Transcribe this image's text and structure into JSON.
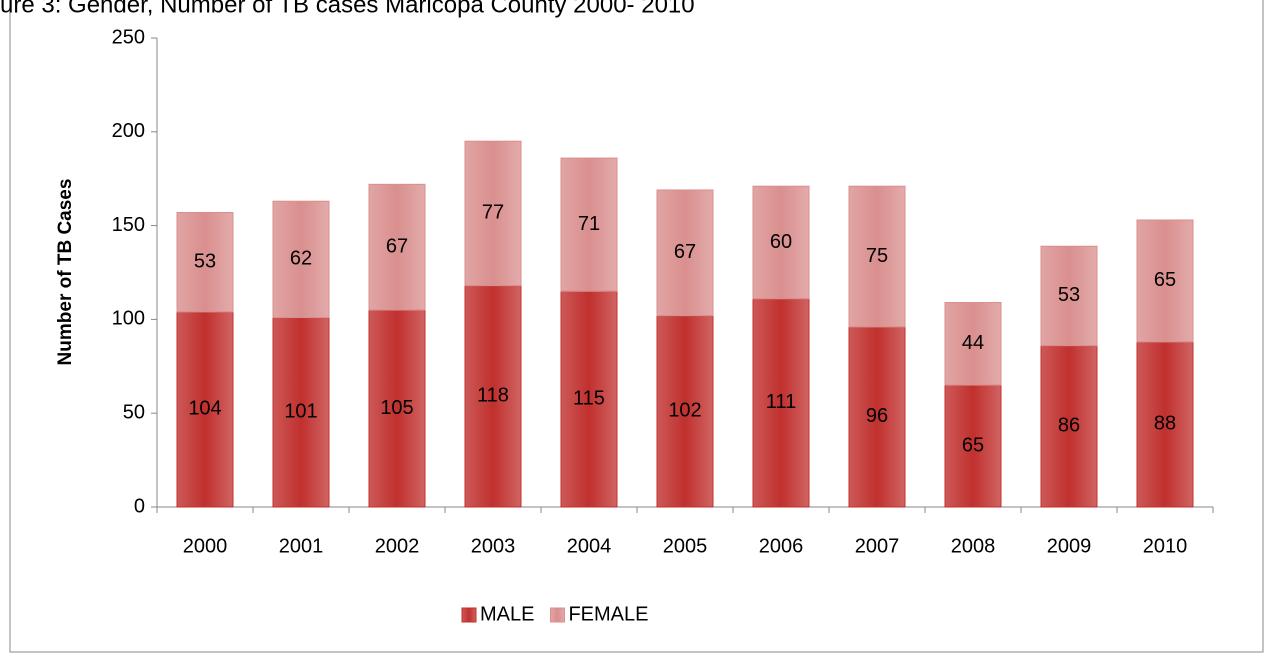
{
  "chart_data": {
    "type": "stacked-bar",
    "title": "ure 3: Gender, Number of TB cases Maricopa County 2000- 2010",
    "y_label": "Number of TB Cases",
    "categories": [
      "2000",
      "2001",
      "2002",
      "2003",
      "2004",
      "2005",
      "2006",
      "2007",
      "2008",
      "2009",
      "2010"
    ],
    "series": [
      {
        "name": "MALE",
        "color": "#c0302e",
        "values": [
          104,
          101,
          105,
          118,
          115,
          102,
          111,
          96,
          65,
          86,
          88
        ]
      },
      {
        "name": "FEMALE",
        "color": "#d98f8e",
        "values": [
          53,
          62,
          67,
          77,
          71,
          67,
          60,
          75,
          44,
          53,
          65
        ]
      }
    ],
    "ylim": [
      0,
      250
    ],
    "yticks": [
      0,
      50,
      100,
      150,
      200,
      250
    ],
    "legend": "bottom"
  }
}
